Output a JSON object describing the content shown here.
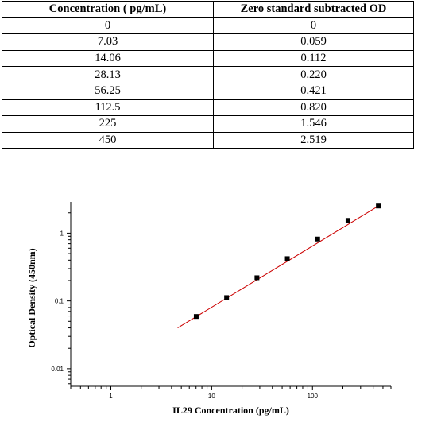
{
  "table": {
    "headers": [
      "Concentration ( pg/mL)",
      "Zero standard subtracted OD"
    ],
    "rows": [
      [
        "0",
        "0"
      ],
      [
        "7.03",
        "0.059"
      ],
      [
        "14.06",
        "0.112"
      ],
      [
        "28.13",
        "0.220"
      ],
      [
        "56.25",
        "0.421"
      ],
      [
        "112.5",
        "0.820"
      ],
      [
        "225",
        "1.546"
      ],
      [
        "450",
        "2.519"
      ]
    ]
  },
  "chart_data": {
    "type": "scatter",
    "xlabel": "IL29 Concentration (pg/mL)",
    "ylabel": "Optical Density (450nm)",
    "x_scale": "log",
    "y_scale": "log",
    "xlim": [
      0.4,
      600
    ],
    "ylim": [
      0.0055,
      2.9
    ],
    "x_ticks": [
      1,
      10,
      100
    ],
    "x_tick_labels": [
      "1",
      "10",
      "100"
    ],
    "y_ticks": [
      0.01,
      0.1,
      1
    ],
    "y_tick_labels": [
      "0.01",
      "0.1",
      "1"
    ],
    "points": {
      "x": [
        7.03,
        14.06,
        28.13,
        56.25,
        112.5,
        225,
        450
      ],
      "y": [
        0.059,
        0.112,
        0.22,
        0.421,
        0.82,
        1.546,
        2.519
      ]
    },
    "fit_line": {
      "x": [
        4.6,
        450
      ],
      "y": [
        0.04,
        2.519
      ]
    },
    "colors": {
      "points": "#000000",
      "fit_line": "#cc0000",
      "axes": "#000000"
    },
    "grid": false,
    "legend": "none"
  }
}
